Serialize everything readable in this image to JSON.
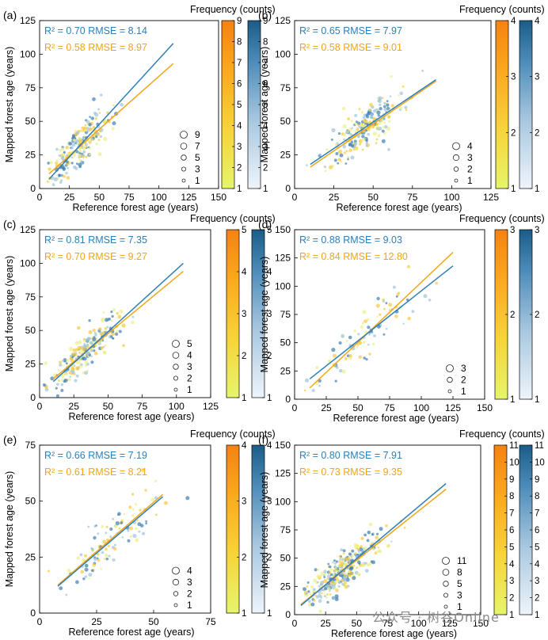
{
  "figure": {
    "watermark": "公众号 · 树谷Online",
    "colors": {
      "blue": "#2E7FB8",
      "orange": "#F2A516",
      "dark_blue": "#1F5F8B"
    }
  },
  "chart_data": [
    {
      "id": "a",
      "panel_label": "(a)",
      "type": "scatter",
      "xlabel": "Reference forest age (years)",
      "ylabel": "Mapped forest age (years)",
      "xlim": [
        0,
        150
      ],
      "ylim": [
        0,
        125
      ],
      "xticks": [
        0,
        25,
        50,
        75,
        100,
        125,
        150
      ],
      "yticks": [
        0,
        25,
        50,
        75,
        100,
        125
      ],
      "center": [
        33,
        33
      ],
      "spread": 12,
      "noise": 7,
      "n_points": 230,
      "series": [
        {
          "name": "blue",
          "r2_text": "R² = 0.70 RMSE = 8.14",
          "r2": 0.7,
          "rmse": 8.14,
          "fit": [
            [
              8,
              7
            ],
            [
              112,
              108
            ]
          ]
        },
        {
          "name": "orange",
          "r2_text": "R² = 0.58 RMSE = 8.97",
          "r2": 0.58,
          "rmse": 8.97,
          "fit": [
            [
              8,
              11
            ],
            [
              112,
              93
            ]
          ]
        }
      ],
      "size_legend": [
        "9",
        "7",
        "5",
        "3",
        "1"
      ],
      "colorbar_title": "Frequency (counts)",
      "colorbar_ticks": [
        "1",
        "2",
        "3",
        "4",
        "5",
        "6",
        "7",
        "8",
        "9"
      ]
    },
    {
      "id": "b",
      "panel_label": "(b)",
      "type": "scatter",
      "xlabel": "Reference forest age (years)",
      "ylabel": "Mapped forest age (years)",
      "xlim": [
        0,
        125
      ],
      "ylim": [
        0,
        125
      ],
      "xticks": [
        0,
        25,
        50,
        75,
        100,
        125
      ],
      "yticks": [
        0,
        25,
        50,
        75,
        100,
        125
      ],
      "center": [
        45,
        44
      ],
      "spread": 12,
      "noise": 8,
      "n_points": 230,
      "series": [
        {
          "name": "blue",
          "r2_text": "R² = 0.65 RMSE = 7.97",
          "r2": 0.65,
          "rmse": 7.97,
          "fit": [
            [
              10,
              18
            ],
            [
              90,
              81
            ]
          ]
        },
        {
          "name": "orange",
          "r2_text": "R² = 0.58 RMSE = 9.01",
          "r2": 0.58,
          "rmse": 9.01,
          "fit": [
            [
              10,
              16
            ],
            [
              90,
              80
            ]
          ]
        }
      ],
      "size_legend": [
        "4",
        "3",
        "2",
        "1"
      ],
      "colorbar_title": "Frequency (counts)",
      "colorbar_ticks": [
        "1",
        "2",
        "3",
        "4"
      ]
    },
    {
      "id": "c",
      "panel_label": "(c)",
      "type": "scatter",
      "xlabel": "Reference forest age (years)",
      "ylabel": "Mapped forest age (years)",
      "xlim": [
        0,
        125
      ],
      "ylim": [
        0,
        125
      ],
      "xticks": [
        0,
        25,
        50,
        75,
        100,
        125
      ],
      "yticks": [
        0,
        25,
        50,
        75,
        100,
        125
      ],
      "center": [
        35,
        35
      ],
      "spread": 13,
      "noise": 7,
      "n_points": 230,
      "series": [
        {
          "name": "blue",
          "r2_text": "R² = 0.81 RMSE = 7.35",
          "r2": 0.81,
          "rmse": 7.35,
          "fit": [
            [
              10,
              12
            ],
            [
              105,
              100
            ]
          ]
        },
        {
          "name": "orange",
          "r2_text": "R² = 0.70 RMSE = 9.27",
          "r2": 0.7,
          "rmse": 9.27,
          "fit": [
            [
              10,
              14
            ],
            [
              105,
              94
            ]
          ]
        }
      ],
      "size_legend": [
        "5",
        "4",
        "3",
        "2",
        "1"
      ],
      "colorbar_title": "Frequency (counts)",
      "colorbar_ticks": [
        "1",
        "2",
        "3",
        "4",
        "5"
      ]
    },
    {
      "id": "d",
      "panel_label": "(d)",
      "type": "scatter",
      "xlabel": "Reference forest age (years)",
      "ylabel": "Mapped forest age (years)",
      "xlim": [
        0,
        150
      ],
      "ylim": [
        0,
        150
      ],
      "xticks": [
        0,
        25,
        50,
        75,
        100,
        125,
        150
      ],
      "yticks": [
        0,
        25,
        50,
        75,
        100,
        125,
        150
      ],
      "center": [
        55,
        55
      ],
      "spread": 22,
      "noise": 10,
      "n_points": 90,
      "series": [
        {
          "name": "blue",
          "r2_text": "R² = 0.88 RMSE = 9.03",
          "r2": 0.88,
          "rmse": 9.03,
          "fit": [
            [
              12,
              18
            ],
            [
              125,
              118
            ]
          ]
        },
        {
          "name": "orange",
          "r2_text": "R² = 0.84 RMSE = 12.80",
          "r2": 0.84,
          "rmse": 12.8,
          "fit": [
            [
              12,
              10
            ],
            [
              125,
              130
            ]
          ]
        }
      ],
      "size_legend": [
        "3",
        "2",
        "1"
      ],
      "colorbar_title": "Frequency (counts)",
      "colorbar_ticks": [
        "1",
        "2",
        "3"
      ]
    },
    {
      "id": "e",
      "panel_label": "(e)",
      "type": "scatter",
      "xlabel": "Reference forest age (years)",
      "ylabel": "Mapped forest age (years)",
      "xlim": [
        0,
        75
      ],
      "ylim": [
        0,
        75
      ],
      "xticks": [
        0,
        25,
        50,
        75
      ],
      "yticks": [
        0,
        25,
        50,
        75
      ],
      "center": [
        32,
        32
      ],
      "spread": 10,
      "noise": 6,
      "n_points": 110,
      "series": [
        {
          "name": "blue",
          "r2_text": "R² = 0.66 RMSE = 7.19",
          "r2": 0.66,
          "rmse": 7.19,
          "fit": [
            [
              8,
              12
            ],
            [
              54,
              52
            ]
          ]
        },
        {
          "name": "orange",
          "r2_text": "R² = 0.61 RMSE = 8.21",
          "r2": 0.61,
          "rmse": 8.21,
          "fit": [
            [
              8,
              12.5
            ],
            [
              54,
              53
            ]
          ]
        }
      ],
      "size_legend": [
        "4",
        "3",
        "2",
        "1"
      ],
      "colorbar_title": "Frequency (counts)",
      "colorbar_ticks": [
        "1",
        "2",
        "3",
        "4"
      ]
    },
    {
      "id": "f",
      "panel_label": "(f)",
      "type": "scatter",
      "xlabel": "Reference forest age (years)",
      "ylabel": "Mapped forest age (years)",
      "xlim": [
        0,
        150
      ],
      "ylim": [
        0,
        150
      ],
      "xticks": [
        0,
        25,
        50,
        75,
        100,
        125,
        150
      ],
      "yticks": [
        0,
        25,
        50,
        75,
        100,
        125,
        150
      ],
      "center": [
        38,
        38
      ],
      "spread": 16,
      "noise": 9,
      "n_points": 320,
      "series": [
        {
          "name": "blue",
          "r2_text": "R² = 0.80 RMSE = 7.91",
          "r2": 0.8,
          "rmse": 7.91,
          "fit": [
            [
              5,
              8
            ],
            [
              122,
              116
            ]
          ]
        },
        {
          "name": "orange",
          "r2_text": "R² = 0.73 RMSE = 9.35",
          "r2": 0.73,
          "rmse": 9.35,
          "fit": [
            [
              5,
              9
            ],
            [
              122,
              111
            ]
          ]
        }
      ],
      "size_legend": [
        "11",
        "8",
        "5",
        "3",
        "1"
      ],
      "colorbar_title": "Frequency (counts)",
      "colorbar_ticks": [
        "1",
        "2",
        "3",
        "4",
        "5",
        "6",
        "7",
        "8",
        "9",
        "10",
        "11"
      ]
    }
  ]
}
